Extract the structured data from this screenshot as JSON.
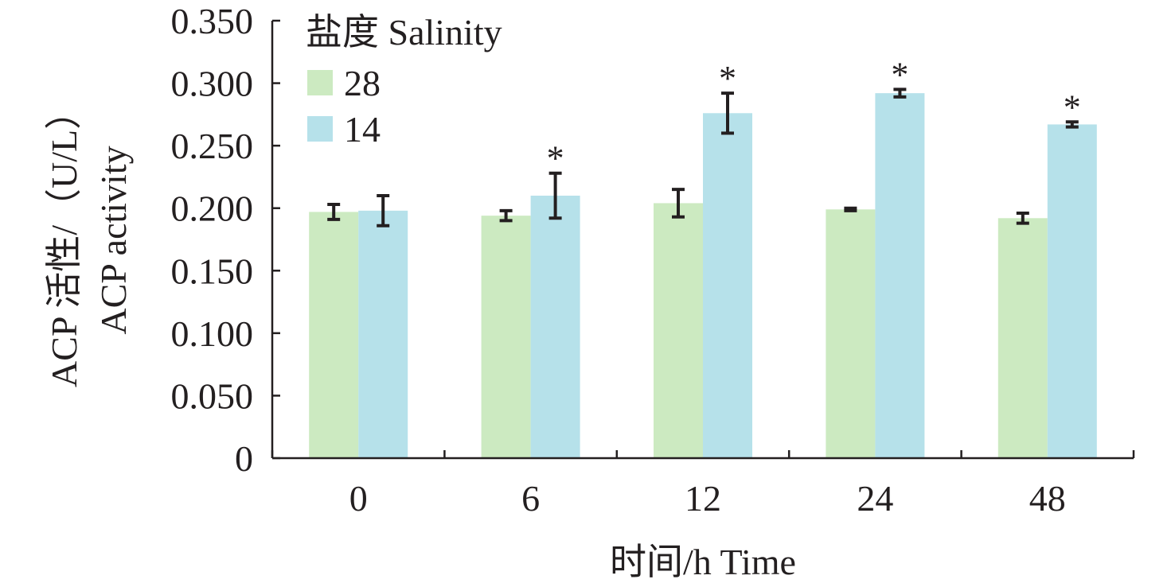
{
  "chart_data": {
    "type": "bar",
    "title": "",
    "categories": [
      "0",
      "6",
      "12",
      "24",
      "48"
    ],
    "xlabel": "时间/h Time",
    "ylabel_lines": [
      "ACP 活性/（U/L）",
      "ACP activity"
    ],
    "ylim": [
      0,
      0.35
    ],
    "yticks": [
      0,
      0.05,
      0.1,
      0.15,
      0.2,
      0.25,
      0.3,
      0.35
    ],
    "ytick_labels": [
      "0",
      "0.050",
      "0.100",
      "0.150",
      "0.200",
      "0.250",
      "0.300",
      "0.350"
    ],
    "legend": {
      "title": "盐度 Salinity",
      "placement": "top-left"
    },
    "series": [
      {
        "name": "28",
        "color": "#cceac1",
        "values": [
          0.197,
          0.194,
          0.204,
          0.199,
          0.192
        ],
        "errors": [
          0.006,
          0.004,
          0.011,
          0.001,
          0.004
        ],
        "significant": [
          false,
          false,
          false,
          false,
          false
        ]
      },
      {
        "name": "14",
        "color": "#b6e1ea",
        "values": [
          0.198,
          0.21,
          0.276,
          0.292,
          0.267
        ],
        "errors": [
          0.012,
          0.018,
          0.016,
          0.003,
          0.002
        ],
        "significant": [
          false,
          true,
          true,
          true,
          true
        ]
      }
    ],
    "significance_marker": "*",
    "grid": false
  }
}
